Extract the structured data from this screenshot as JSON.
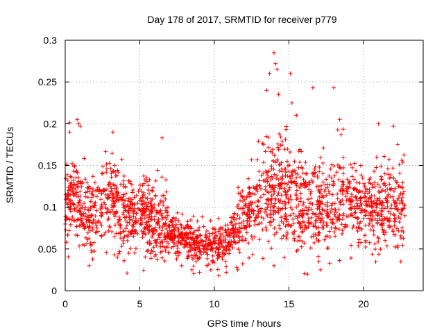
{
  "chart_data": {
    "type": "scatter",
    "title": "Day 178 of 2017, SRMTID for receiver p779",
    "xlabel": "GPS time / hours",
    "ylabel": "SRMTID / TECUs",
    "xlim": [
      0,
      24
    ],
    "ylim": [
      0,
      0.3
    ],
    "xticks": [
      0,
      5,
      10,
      15,
      20
    ],
    "yticks": [
      0,
      0.05,
      0.1,
      0.15,
      0.2,
      0.25,
      0.3
    ],
    "grid": true,
    "marker": "+",
    "color": "#ff0000",
    "trend": [
      [
        0.0,
        0.105
      ],
      [
        0.5,
        0.12
      ],
      [
        1.0,
        0.1
      ],
      [
        1.5,
        0.085
      ],
      [
        2.0,
        0.09
      ],
      [
        2.5,
        0.1
      ],
      [
        3.0,
        0.11
      ],
      [
        3.5,
        0.11
      ],
      [
        4.0,
        0.095
      ],
      [
        4.5,
        0.09
      ],
      [
        5.0,
        0.09
      ],
      [
        5.5,
        0.095
      ],
      [
        6.0,
        0.09
      ],
      [
        6.5,
        0.08
      ],
      [
        7.0,
        0.07
      ],
      [
        7.5,
        0.065
      ],
      [
        8.0,
        0.06
      ],
      [
        8.5,
        0.057
      ],
      [
        9.0,
        0.055
      ],
      [
        9.5,
        0.053
      ],
      [
        10.0,
        0.055
      ],
      [
        10.5,
        0.055
      ],
      [
        11.0,
        0.06
      ],
      [
        11.5,
        0.075
      ],
      [
        12.0,
        0.09
      ],
      [
        12.5,
        0.1
      ],
      [
        13.0,
        0.11
      ],
      [
        13.5,
        0.12
      ],
      [
        14.0,
        0.125
      ],
      [
        14.5,
        0.12
      ],
      [
        15.0,
        0.115
      ],
      [
        15.5,
        0.11
      ],
      [
        16.0,
        0.105
      ],
      [
        16.5,
        0.105
      ],
      [
        17.0,
        0.1
      ],
      [
        17.5,
        0.095
      ],
      [
        18.0,
        0.1
      ],
      [
        18.5,
        0.115
      ],
      [
        19.0,
        0.11
      ],
      [
        19.5,
        0.105
      ],
      [
        20.0,
        0.1
      ],
      [
        20.5,
        0.095
      ],
      [
        21.0,
        0.1
      ],
      [
        21.5,
        0.105
      ],
      [
        22.0,
        0.1
      ],
      [
        22.5,
        0.1
      ],
      [
        22.8,
        0.1
      ]
    ],
    "n_points": 2200,
    "x_max_data": 22.8,
    "notable_points": [
      [
        0.3,
        0.19
      ],
      [
        0.8,
        0.205
      ],
      [
        0.9,
        0.2
      ],
      [
        1.0,
        0.197
      ],
      [
        3.2,
        0.19
      ],
      [
        6.5,
        0.183
      ],
      [
        13.3,
        0.175
      ],
      [
        13.5,
        0.24
      ],
      [
        13.7,
        0.26
      ],
      [
        14.0,
        0.285
      ],
      [
        14.1,
        0.272
      ],
      [
        14.2,
        0.265
      ],
      [
        14.3,
        0.235
      ],
      [
        15.1,
        0.26
      ],
      [
        15.2,
        0.225
      ],
      [
        15.5,
        0.21
      ],
      [
        16.6,
        0.243
      ],
      [
        18.0,
        0.243
      ],
      [
        18.4,
        0.205
      ],
      [
        18.5,
        0.187
      ],
      [
        21.0,
        0.2
      ],
      [
        22.0,
        0.197
      ],
      [
        22.3,
        0.175
      ],
      [
        3.5,
        0.04
      ],
      [
        7.8,
        0.03
      ],
      [
        8.5,
        0.025
      ],
      [
        9.0,
        0.022
      ],
      [
        9.5,
        0.03
      ],
      [
        10.3,
        0.018
      ],
      [
        10.8,
        0.022
      ],
      [
        11.5,
        0.028
      ],
      [
        14.0,
        0.03
      ],
      [
        17.0,
        0.035
      ],
      [
        22.5,
        0.035
      ],
      [
        1.6,
        0.03
      ]
    ]
  }
}
